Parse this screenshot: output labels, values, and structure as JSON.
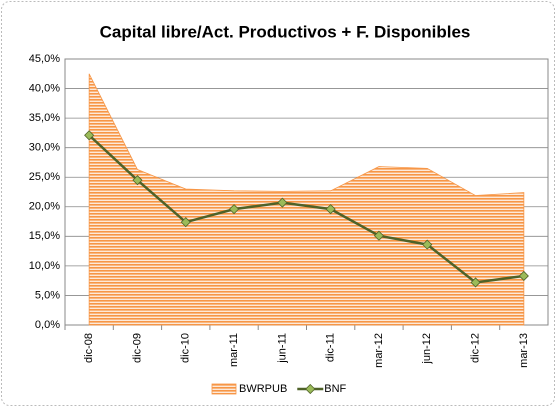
{
  "chart_data": {
    "type": "line",
    "title": "Capital libre/Act. Productivos + F. Disponibles",
    "categories": [
      "dic-08",
      "dic-09",
      "dic-10",
      "mar-11",
      "jun-11",
      "dic-11",
      "mar-12",
      "jun-12",
      "dic-12",
      "mar-13"
    ],
    "series": [
      {
        "name": "BWRPUB",
        "type": "area",
        "color": "#f79646",
        "values": [
          42.5,
          26.3,
          23.0,
          22.7,
          22.6,
          22.7,
          26.8,
          26.5,
          21.9,
          22.4
        ]
      },
      {
        "name": "BNF",
        "type": "line",
        "color": "#4f6228",
        "marker_color": "#9bbb59",
        "values": [
          32.1,
          24.5,
          17.4,
          19.6,
          20.7,
          19.6,
          15.1,
          13.6,
          7.2,
          8.3
        ]
      }
    ],
    "ylim": [
      0,
      45
    ],
    "yticks": [
      {
        "value": 0,
        "label": "0,0%"
      },
      {
        "value": 5,
        "label": "5,0%"
      },
      {
        "value": 10,
        "label": "10,0%"
      },
      {
        "value": 15,
        "label": "15,0%"
      },
      {
        "value": 20,
        "label": "20,0%"
      },
      {
        "value": 25,
        "label": "25,0%"
      },
      {
        "value": 30,
        "label": "30,0%"
      },
      {
        "value": 35,
        "label": "35,0%"
      },
      {
        "value": 40,
        "label": "40,0%"
      },
      {
        "value": 45,
        "label": "45,0%"
      }
    ],
    "grid": true,
    "legend": "bottom"
  }
}
